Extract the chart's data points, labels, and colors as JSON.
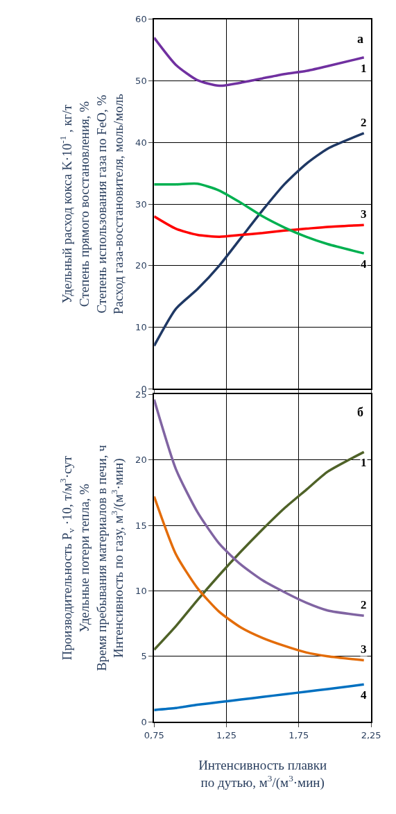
{
  "chart_data": [
    {
      "type": "line",
      "ylabel": "Удельный расход кокса K·10$^{-1}$ , кг/т\nСтепень прямого восстановления, %\nСтепень использования газа по FeO, %\nРасход газа-восстановителя, моль/моль",
      "annotations": [
        "а"
      ],
      "x": [
        0.75,
        0.9,
        1.05,
        1.2,
        1.35,
        1.5,
        1.65,
        1.8,
        1.95,
        2.2
      ],
      "xlim": [
        0.75,
        2.25
      ],
      "xticks": [
        {
          "value": 0.75,
          "label": null
        },
        {
          "value": 1.25,
          "label": null
        },
        {
          "value": 1.75,
          "label": null
        },
        {
          "value": 2.25,
          "label": null
        }
      ],
      "ylim": [
        0,
        60
      ],
      "yticks": [
        0,
        10,
        20,
        30,
        40,
        50,
        60
      ],
      "tick_labels": "y",
      "grid": true,
      "legend": false,
      "series": [
        {
          "name": "1",
          "color": "#7030a0",
          "values": [
            57,
            52.6,
            50.1,
            49.2,
            49.7,
            50.4,
            51.1,
            51.6,
            52.4,
            53.8
          ]
        },
        {
          "name": "2",
          "color": "#1f3864",
          "values": [
            7,
            13,
            16.2,
            20,
            24.5,
            29,
            33.2,
            36.5,
            39,
            41.5
          ]
        },
        {
          "name": "3",
          "color": "#ff0000",
          "values": [
            28,
            26,
            25,
            24.7,
            25,
            25.3,
            25.7,
            26,
            26.3,
            26.6
          ]
        },
        {
          "name": "4",
          "color": "#00b050",
          "values": [
            33.2,
            33.2,
            33.3,
            32.2,
            30.2,
            28,
            26.2,
            24.7,
            23.5,
            22
          ]
        }
      ]
    },
    {
      "type": "line",
      "ylabel": "Производительность P$_{v}$ ·10, т/м$^{3}$·сут\nУдельные потери тепла, %\nВремя пребывания материалов в печи, ч\nИнтенсивность по газу, м$^{3}$/(м$^{3}$·мин)",
      "xlabel": "Интенсивность плавки\nпо дутью, м$^{3}$/(м$^{3}$·мин)",
      "annotations": [
        "б"
      ],
      "x": [
        0.75,
        0.9,
        1.05,
        1.2,
        1.35,
        1.5,
        1.65,
        1.8,
        1.95,
        2.2
      ],
      "xlim": [
        0.75,
        2.25
      ],
      "xticks": [
        {
          "value": 0.75,
          "label": "0,75"
        },
        {
          "value": 1.25,
          "label": "1,25"
        },
        {
          "value": 1.75,
          "label": "1,75"
        },
        {
          "value": 2.25,
          "label": "2,25"
        }
      ],
      "ylim": [
        0,
        25
      ],
      "yticks": [
        0,
        5,
        10,
        15,
        20,
        25
      ],
      "grid": true,
      "legend": false,
      "series": [
        {
          "name": "1",
          "color": "#4f6228",
          "values": [
            5.5,
            7.3,
            9.3,
            11.2,
            13,
            14.7,
            16.3,
            17.7,
            19.1,
            20.6
          ]
        },
        {
          "name": "2",
          "color": "#8064a2",
          "values": [
            24.6,
            19.3,
            16,
            13.6,
            12,
            10.8,
            9.9,
            9.1,
            8.5,
            8.1
          ]
        },
        {
          "name": "3",
          "color": "#e36c09",
          "values": [
            17.2,
            12.8,
            10.2,
            8.4,
            7.2,
            6.4,
            5.8,
            5.3,
            5,
            4.7
          ]
        },
        {
          "name": "4",
          "color": "#0070c0",
          "values": [
            0.9,
            1.05,
            1.3,
            1.5,
            1.7,
            1.9,
            2.1,
            2.3,
            2.5,
            2.85
          ]
        }
      ]
    }
  ]
}
